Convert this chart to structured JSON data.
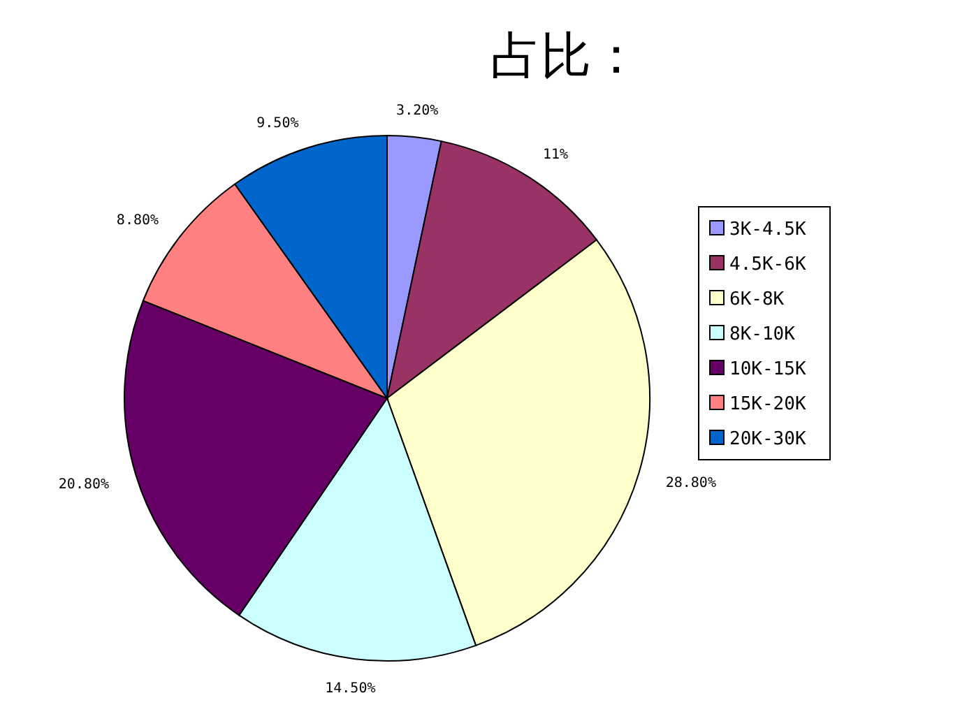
{
  "chart_data": {
    "type": "pie",
    "title": "占比：",
    "categories": [
      "3K-4.5K",
      "4.5K-6K",
      "6K-8K",
      "8K-10K",
      "10K-15K",
      "15K-20K",
      "20K-30K"
    ],
    "values": [
      3.2,
      11,
      28.8,
      14.5,
      20.8,
      8.8,
      9.5
    ],
    "value_labels": [
      "3.20%",
      "11%",
      "28.80%",
      "14.50%",
      "20.80%",
      "8.80%",
      "9.50%"
    ],
    "colors": [
      "#9999ff",
      "#993366",
      "#ffffcc",
      "#ccffff",
      "#660066",
      "#ff8080",
      "#0066cc"
    ],
    "legend": "right"
  }
}
